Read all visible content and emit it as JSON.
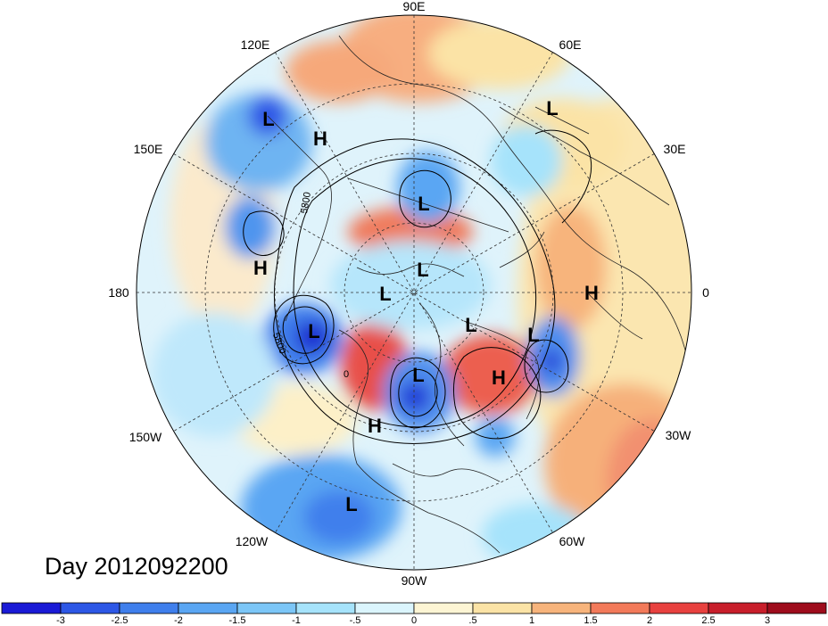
{
  "title": "Day 2012092200",
  "longitude_labels": {
    "lon_90e": "90E",
    "lon_60e": "60E",
    "lon_30e": "30E",
    "lon_0": "0",
    "lon_30w": "30W",
    "lon_60w": "60W",
    "lon_90w": "90W",
    "lon_120w": "120W",
    "lon_150w": "150W",
    "lon_180": "180",
    "lon_150e": "150E",
    "lon_120e": "120E"
  },
  "pressure_centers": [
    {
      "type": "L",
      "label": "L"
    },
    {
      "type": "L",
      "label": "L"
    },
    {
      "type": "L",
      "label": "L"
    },
    {
      "type": "L",
      "label": "L"
    },
    {
      "type": "L",
      "label": "L"
    },
    {
      "type": "L",
      "label": "L"
    },
    {
      "type": "L",
      "label": "L"
    },
    {
      "type": "L",
      "label": "L"
    },
    {
      "type": "L",
      "label": "L"
    },
    {
      "type": "L",
      "label": "L"
    },
    {
      "type": "H",
      "label": "H"
    },
    {
      "type": "H",
      "label": "H"
    },
    {
      "type": "H",
      "label": "H"
    },
    {
      "type": "H",
      "label": "H"
    },
    {
      "type": "H",
      "label": "H"
    }
  ],
  "contour_labels": [
    "5800",
    "5800",
    "0"
  ],
  "colorbar": {
    "ticks": [
      "-3",
      "-2.5",
      "-2",
      "-1.5",
      "-1",
      "-.5",
      "0",
      ".5",
      "1",
      "1.5",
      "2",
      "2.5",
      "3"
    ],
    "colors": [
      "#1a1ad6",
      "#2d57e6",
      "#3f7fec",
      "#5aa6f3",
      "#7cc6f7",
      "#a6e3fb",
      "#dbf5fd",
      "#fdf5d4",
      "#fbe3a6",
      "#f7b47c",
      "#f27a5a",
      "#e8413f",
      "#c81e2b",
      "#9e0c1c"
    ]
  }
}
